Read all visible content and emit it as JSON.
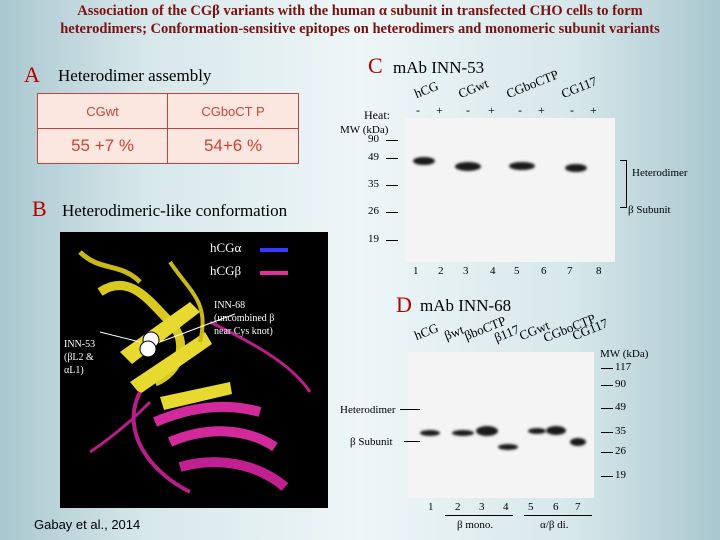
{
  "title_line1": "Association of the CGβ variants with the human α subunit in transfected CHO cells to form",
  "title_line2": "heterodimers; Conformation-sensitive epitopes on heterodimers and monomeric subunit variants",
  "panelA": {
    "letter": "A",
    "title": "Heterodimer assembly",
    "headers": [
      "CGwt",
      "CGboCT P"
    ],
    "values": [
      "55 +7 %",
      "54+6 %"
    ]
  },
  "panelB": {
    "letter": "B",
    "title": "Heterodimeric-like conformation",
    "legend": [
      "hCGα",
      "hCGβ"
    ],
    "legend_colors": [
      "#3a3aff",
      "#e0309a"
    ],
    "annot_right": "INN-68\n(uncombined β\nnear Cys knot)",
    "annot_left": "INN-53\n(βL2 &\nαL1)",
    "citation": "Gabay et al., 2014"
  },
  "panelC": {
    "letter": "C",
    "title": "mAb INN-53",
    "sample_labels": [
      "hCG",
      "CGwt",
      "CGboCTP",
      "CG117"
    ],
    "heat_label": "Heat:",
    "heat_signs": [
      "-",
      "+",
      "-",
      "+",
      "-",
      "+",
      "-",
      "+"
    ],
    "mw_label": "MW (kDa)",
    "mw": [
      "90",
      "49",
      "35",
      "26",
      "19"
    ],
    "lanes": [
      "1",
      "2",
      "3",
      "4",
      "5",
      "6",
      "7",
      "8"
    ],
    "right_labels": [
      "Heterodimer",
      "β Subunit"
    ]
  },
  "panelD": {
    "letter": "D",
    "title": "mAb INN-68",
    "sample_labels": [
      "hCG",
      "βwt",
      "βboCTP",
      "β117",
      "CGwt",
      "CGboCTP",
      "CG117"
    ],
    "mw_label": "MW (kDa)",
    "mw": [
      "117",
      "90",
      "49",
      "35",
      "26",
      "19"
    ],
    "lanes": [
      "1",
      "2",
      "3",
      "4",
      "5",
      "6",
      "7"
    ],
    "left_labels": [
      "Heterodimer",
      "β Subunit"
    ],
    "bottom_labels": [
      "β mono.",
      "α/β di."
    ]
  }
}
